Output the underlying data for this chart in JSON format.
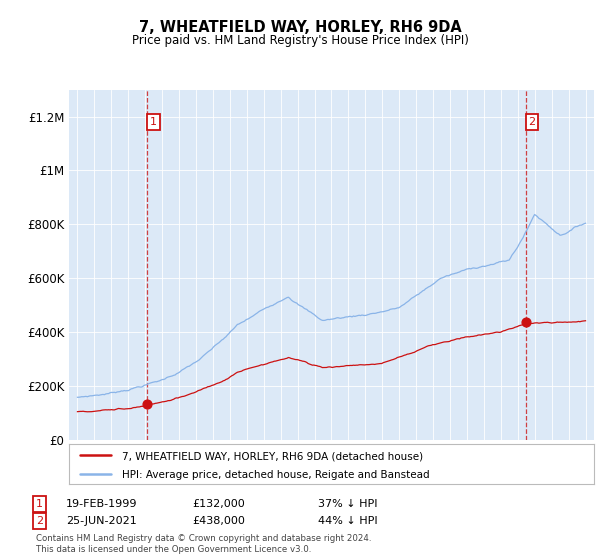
{
  "title": "7, WHEATFIELD WAY, HORLEY, RH6 9DA",
  "subtitle": "Price paid vs. HM Land Registry's House Price Index (HPI)",
  "plot_bg_color": "#dce9f7",
  "hpi_color": "#8ab4e8",
  "price_color": "#cc1111",
  "ylim": [
    0,
    1300000
  ],
  "yticks": [
    0,
    200000,
    400000,
    600000,
    800000,
    1000000,
    1200000
  ],
  "ytick_labels": [
    "£0",
    "£200K",
    "£400K",
    "£600K",
    "£800K",
    "£1M",
    "£1.2M"
  ],
  "xstart_year": 1995,
  "xend_year": 2025,
  "sale1_year": 1999.13,
  "sale1_price": 132000,
  "sale2_year": 2021.48,
  "sale2_price": 438000,
  "legend1": "7, WHEATFIELD WAY, HORLEY, RH6 9DA (detached house)",
  "legend2": "HPI: Average price, detached house, Reigate and Banstead",
  "label1": "1",
  "label2": "2",
  "label1_date": "19-FEB-1999",
  "label1_price": "£132,000",
  "label1_hpi": "37% ↓ HPI",
  "label2_date": "25-JUN-2021",
  "label2_price": "£438,000",
  "label2_hpi": "44% ↓ HPI",
  "footer": "Contains HM Land Registry data © Crown copyright and database right 2024.\nThis data is licensed under the Open Government Licence v3.0."
}
